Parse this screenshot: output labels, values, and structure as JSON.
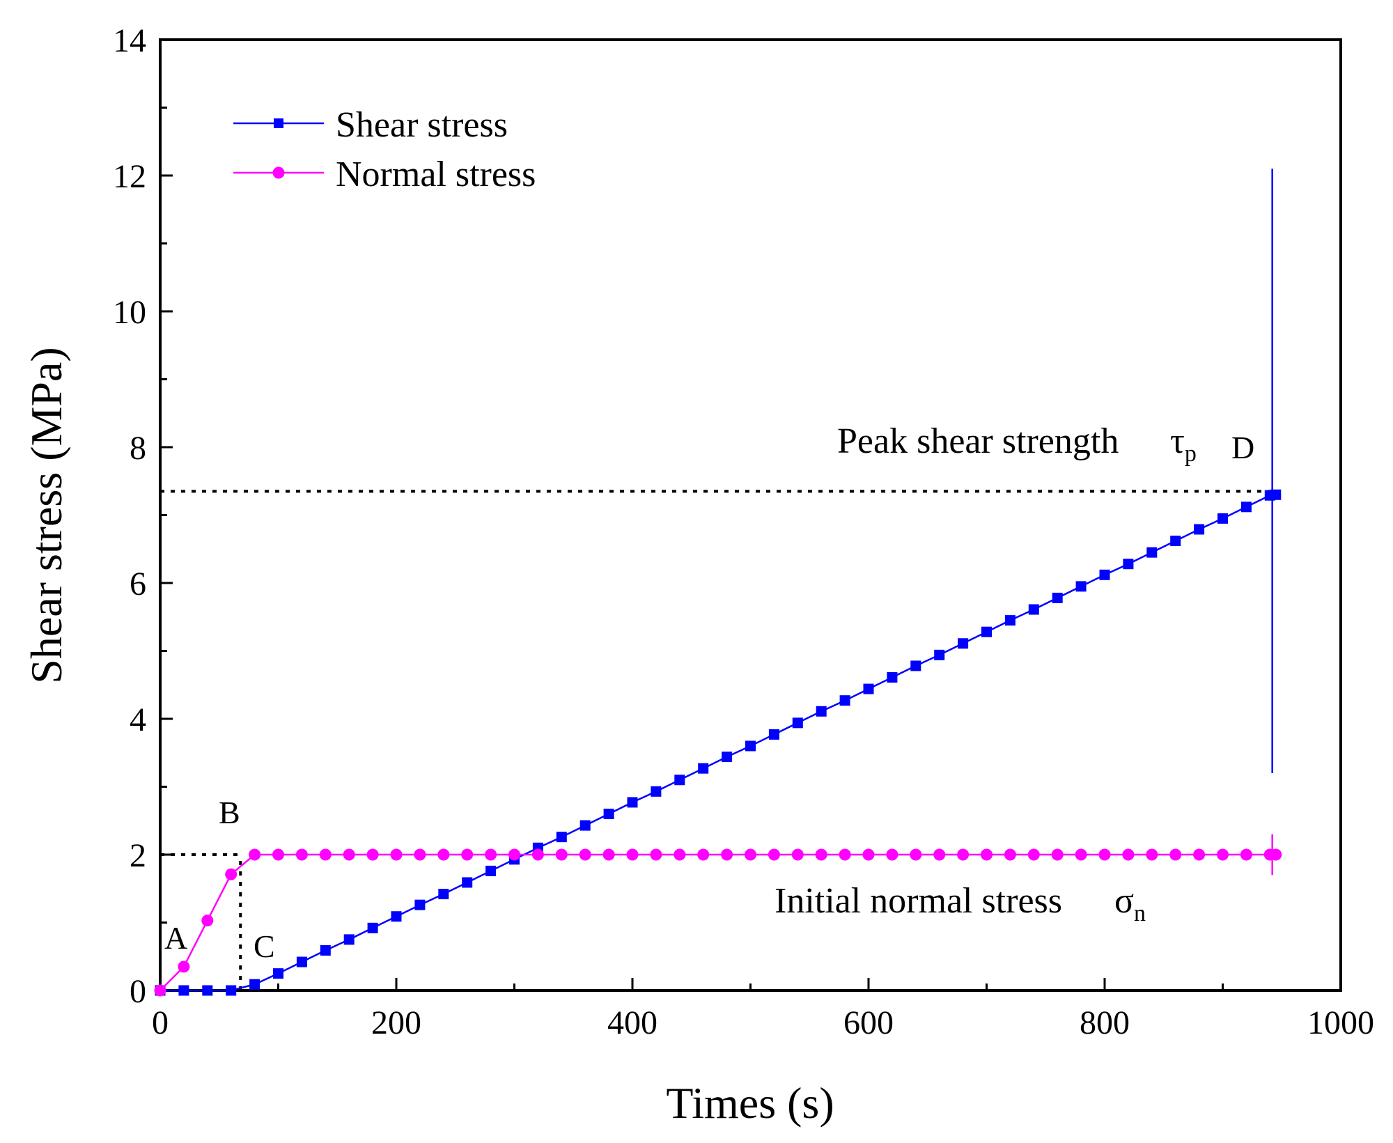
{
  "chart_data": {
    "type": "line",
    "title": "",
    "xlabel": "Times (s)",
    "ylabel": "Shear stress (MPa)",
    "xlim": [
      0,
      1000
    ],
    "ylim": [
      0,
      14
    ],
    "xticks": [
      0,
      200,
      400,
      600,
      800,
      1000
    ],
    "yticks": [
      0,
      2,
      4,
      6,
      8,
      10,
      12,
      14
    ],
    "grid": false,
    "legend_position": "top-left",
    "series": [
      {
        "name": "Shear stress",
        "color": "#0000ff",
        "marker": "square",
        "x": [
          0,
          20,
          40,
          60,
          80,
          100,
          120,
          140,
          160,
          180,
          200,
          220,
          240,
          260,
          280,
          300,
          320,
          340,
          360,
          380,
          400,
          420,
          440,
          460,
          480,
          500,
          520,
          540,
          560,
          580,
          600,
          620,
          640,
          660,
          680,
          700,
          720,
          740,
          760,
          780,
          800,
          820,
          840,
          860,
          880,
          900,
          920,
          940,
          945
        ],
        "y": [
          0,
          0,
          0,
          0,
          0.09,
          0.25,
          0.42,
          0.59,
          0.75,
          0.92,
          1.09,
          1.26,
          1.42,
          1.59,
          1.76,
          1.93,
          2.1,
          2.26,
          2.43,
          2.6,
          2.77,
          2.93,
          3.1,
          3.27,
          3.44,
          3.6,
          3.77,
          3.94,
          4.11,
          4.27,
          4.44,
          4.61,
          4.78,
          4.94,
          5.11,
          5.28,
          5.45,
          5.61,
          5.78,
          5.95,
          6.12,
          6.28,
          6.45,
          6.62,
          6.79,
          6.95,
          7.12,
          7.29,
          7.3
        ]
      },
      {
        "name": "Normal stress",
        "color": "#ff00ff",
        "marker": "circle",
        "x": [
          0,
          20,
          40,
          60,
          80,
          100,
          120,
          140,
          160,
          180,
          200,
          220,
          240,
          260,
          280,
          300,
          320,
          340,
          360,
          380,
          400,
          420,
          440,
          460,
          480,
          500,
          520,
          540,
          560,
          580,
          600,
          620,
          640,
          660,
          680,
          700,
          720,
          740,
          760,
          780,
          800,
          820,
          840,
          860,
          880,
          900,
          920,
          940,
          945
        ],
        "y": [
          0,
          0.35,
          1.03,
          1.71,
          2,
          2,
          2,
          2,
          2,
          2,
          2,
          2,
          2,
          2,
          2,
          2,
          2,
          2,
          2,
          2,
          2,
          2,
          2,
          2,
          2,
          2,
          2,
          2,
          2,
          2,
          2,
          2,
          2,
          2,
          2,
          2,
          2,
          2,
          2,
          2,
          2,
          2,
          2,
          2,
          2,
          2,
          2,
          2,
          2
        ]
      }
    ],
    "spikes": [
      {
        "series": "Shear stress",
        "x": 942,
        "y_low": 3.2,
        "y_high": 12.1
      },
      {
        "series": "Normal stress",
        "x": 942,
        "y_low": 1.7,
        "y_high": 2.3
      }
    ],
    "reference_lines": [
      {
        "kind": "horizontal",
        "y": 7.35,
        "x_from": 0,
        "x_to": 942,
        "style": "dotted"
      },
      {
        "kind": "horizontal",
        "y": 2,
        "x_from": 0,
        "x_to": 68,
        "style": "dotted"
      },
      {
        "kind": "vertical",
        "x": 68,
        "y_from": 0,
        "y_to": 2,
        "style": "dotted"
      }
    ],
    "annotations": {
      "peak_label": "Peak shear strength",
      "peak_symbol": "τ",
      "peak_subscript": "p",
      "normal_label": "Initial normal stress",
      "normal_symbol": "σ",
      "normal_subscript": "n",
      "point_A": "A",
      "point_B": "B",
      "point_C": "C",
      "point_D": "D"
    }
  }
}
